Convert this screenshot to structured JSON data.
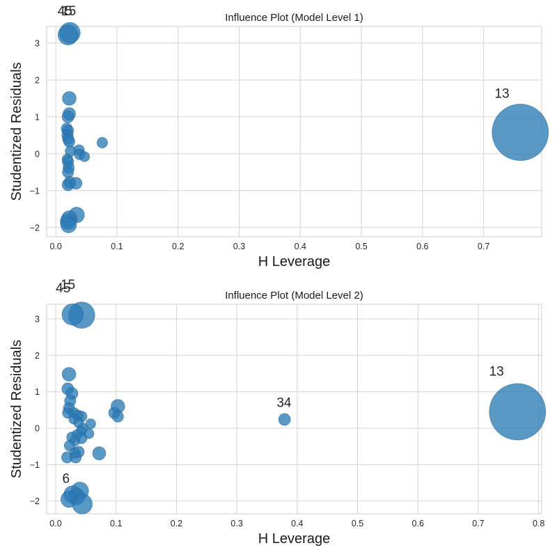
{
  "chart_data": [
    {
      "type": "scatter",
      "title": "Influence Plot (Model Level 1)",
      "xlabel": "H Leverage",
      "ylabel": "Studentized Residuals",
      "xlim": [
        -0.015,
        0.795
      ],
      "ylim": [
        -2.25,
        3.45
      ],
      "xticks": [
        0.0,
        0.1,
        0.2,
        0.3,
        0.4,
        0.5,
        0.6,
        0.7
      ],
      "xtick_labels": [
        "0.0",
        "0.1",
        "0.2",
        "0.3",
        "0.4",
        "0.5",
        "0.6",
        "0.7"
      ],
      "yticks": [
        -2,
        -1,
        0,
        1,
        2,
        3
      ],
      "ytick_labels": [
        "−2",
        "−1",
        "0",
        "1",
        "2",
        "3"
      ],
      "grid": true,
      "point_color": "#2c7bb6",
      "points": [
        {
          "x": 0.76,
          "y": 0.58,
          "size": 9
        },
        {
          "x": 0.023,
          "y": 3.28,
          "size": 3.3
        },
        {
          "x": 0.02,
          "y": 3.22,
          "size": 3.2
        },
        {
          "x": 0.022,
          "y": 1.5,
          "size": 2.2
        },
        {
          "x": 0.022,
          "y": 1.08,
          "size": 2.0
        },
        {
          "x": 0.02,
          "y": 1.0,
          "size": 1.9
        },
        {
          "x": 0.018,
          "y": 0.68,
          "size": 1.8
        },
        {
          "x": 0.02,
          "y": 0.62,
          "size": 1.8
        },
        {
          "x": 0.019,
          "y": 0.5,
          "size": 1.8
        },
        {
          "x": 0.02,
          "y": 0.4,
          "size": 1.8
        },
        {
          "x": 0.022,
          "y": 0.33,
          "size": 1.8
        },
        {
          "x": 0.076,
          "y": 0.3,
          "size": 1.7
        },
        {
          "x": 0.038,
          "y": 0.1,
          "size": 1.7
        },
        {
          "x": 0.024,
          "y": 0.07,
          "size": 1.7
        },
        {
          "x": 0.039,
          "y": -0.02,
          "size": 1.7
        },
        {
          "x": 0.047,
          "y": -0.08,
          "size": 1.6
        },
        {
          "x": 0.019,
          "y": -0.15,
          "size": 1.7
        },
        {
          "x": 0.02,
          "y": -0.22,
          "size": 1.8
        },
        {
          "x": 0.021,
          "y": -0.38,
          "size": 1.8
        },
        {
          "x": 0.02,
          "y": -0.5,
          "size": 1.8
        },
        {
          "x": 0.023,
          "y": -0.78,
          "size": 1.9
        },
        {
          "x": 0.02,
          "y": -0.84,
          "size": 1.9
        },
        {
          "x": 0.033,
          "y": -0.8,
          "size": 1.9
        },
        {
          "x": 0.034,
          "y": -1.66,
          "size": 2.5
        },
        {
          "x": 0.022,
          "y": -1.76,
          "size": 2.5
        },
        {
          "x": 0.02,
          "y": -1.84,
          "size": 2.5
        },
        {
          "x": 0.021,
          "y": -1.93,
          "size": 2.5
        }
      ],
      "annotations": [
        {
          "text": "13",
          "x": 0.718,
          "y": 1.52
        },
        {
          "text": "45",
          "x": 0.003,
          "y": 3.75
        },
        {
          "text": "15",
          "x": 0.009,
          "y": 3.75
        }
      ]
    },
    {
      "type": "scatter",
      "title": "Influence Plot (Model Level 2)",
      "xlabel": "H Leverage",
      "ylabel": "Studentized Residuals",
      "xlim": [
        -0.015,
        0.805
      ],
      "ylim": [
        -2.35,
        3.4
      ],
      "xticks": [
        0.0,
        0.1,
        0.2,
        0.3,
        0.4,
        0.5,
        0.6,
        0.7,
        0.8
      ],
      "xtick_labels": [
        "0.0",
        "0.1",
        "0.2",
        "0.3",
        "0.4",
        "0.5",
        "0.6",
        "0.7",
        "0.8"
      ],
      "yticks": [
        -2,
        -1,
        0,
        1,
        2,
        3
      ],
      "ytick_labels": [
        "−2",
        "−1",
        "0",
        "1",
        "2",
        "3"
      ],
      "grid": true,
      "point_color": "#2c7bb6",
      "points": [
        {
          "x": 0.765,
          "y": 0.45,
          "size": 9
        },
        {
          "x": 0.043,
          "y": 3.1,
          "size": 4.2
        },
        {
          "x": 0.028,
          "y": 3.12,
          "size": 3.4
        },
        {
          "x": 0.379,
          "y": 0.24,
          "size": 1.9
        },
        {
          "x": 0.022,
          "y": 1.48,
          "size": 2.2
        },
        {
          "x": 0.02,
          "y": 1.08,
          "size": 1.9
        },
        {
          "x": 0.027,
          "y": 0.95,
          "size": 1.9
        },
        {
          "x": 0.024,
          "y": 0.75,
          "size": 1.8
        },
        {
          "x": 0.103,
          "y": 0.6,
          "size": 2.2
        },
        {
          "x": 0.022,
          "y": 0.55,
          "size": 1.8
        },
        {
          "x": 0.02,
          "y": 0.42,
          "size": 1.7
        },
        {
          "x": 0.03,
          "y": 0.42,
          "size": 1.7
        },
        {
          "x": 0.097,
          "y": 0.42,
          "size": 1.8
        },
        {
          "x": 0.037,
          "y": 0.35,
          "size": 1.7
        },
        {
          "x": 0.043,
          "y": 0.32,
          "size": 1.7
        },
        {
          "x": 0.103,
          "y": 0.32,
          "size": 1.8
        },
        {
          "x": 0.03,
          "y": 0.25,
          "size": 1.6
        },
        {
          "x": 0.038,
          "y": 0.15,
          "size": 1.6
        },
        {
          "x": 0.058,
          "y": 0.12,
          "size": 1.6
        },
        {
          "x": 0.045,
          "y": 0.0,
          "size": 1.6
        },
        {
          "x": 0.042,
          "y": -0.08,
          "size": 1.6
        },
        {
          "x": 0.055,
          "y": -0.15,
          "size": 1.6
        },
        {
          "x": 0.035,
          "y": -0.18,
          "size": 1.6
        },
        {
          "x": 0.027,
          "y": -0.25,
          "size": 1.7
        },
        {
          "x": 0.043,
          "y": -0.28,
          "size": 1.7
        },
        {
          "x": 0.032,
          "y": -0.35,
          "size": 1.6
        },
        {
          "x": 0.023,
          "y": -0.48,
          "size": 1.7
        },
        {
          "x": 0.032,
          "y": -0.68,
          "size": 1.7
        },
        {
          "x": 0.038,
          "y": -0.65,
          "size": 1.8
        },
        {
          "x": 0.072,
          "y": -0.69,
          "size": 2.1
        },
        {
          "x": 0.019,
          "y": -0.8,
          "size": 1.8
        },
        {
          "x": 0.033,
          "y": -0.8,
          "size": 1.8
        },
        {
          "x": 0.04,
          "y": -1.72,
          "size": 2.8
        },
        {
          "x": 0.028,
          "y": -1.82,
          "size": 2.8
        },
        {
          "x": 0.035,
          "y": -1.88,
          "size": 2.6
        },
        {
          "x": 0.022,
          "y": -1.95,
          "size": 2.6
        },
        {
          "x": 0.044,
          "y": -2.08,
          "size": 3.2
        }
      ],
      "annotations": [
        {
          "text": "13",
          "x": 0.718,
          "y": 1.44
        },
        {
          "text": "34",
          "x": 0.366,
          "y": 0.58
        },
        {
          "text": "45",
          "x": 0.0,
          "y": 3.72
        },
        {
          "text": "15",
          "x": 0.008,
          "y": 3.82
        },
        {
          "text": "6",
          "x": 0.011,
          "y": -1.5
        }
      ]
    }
  ]
}
